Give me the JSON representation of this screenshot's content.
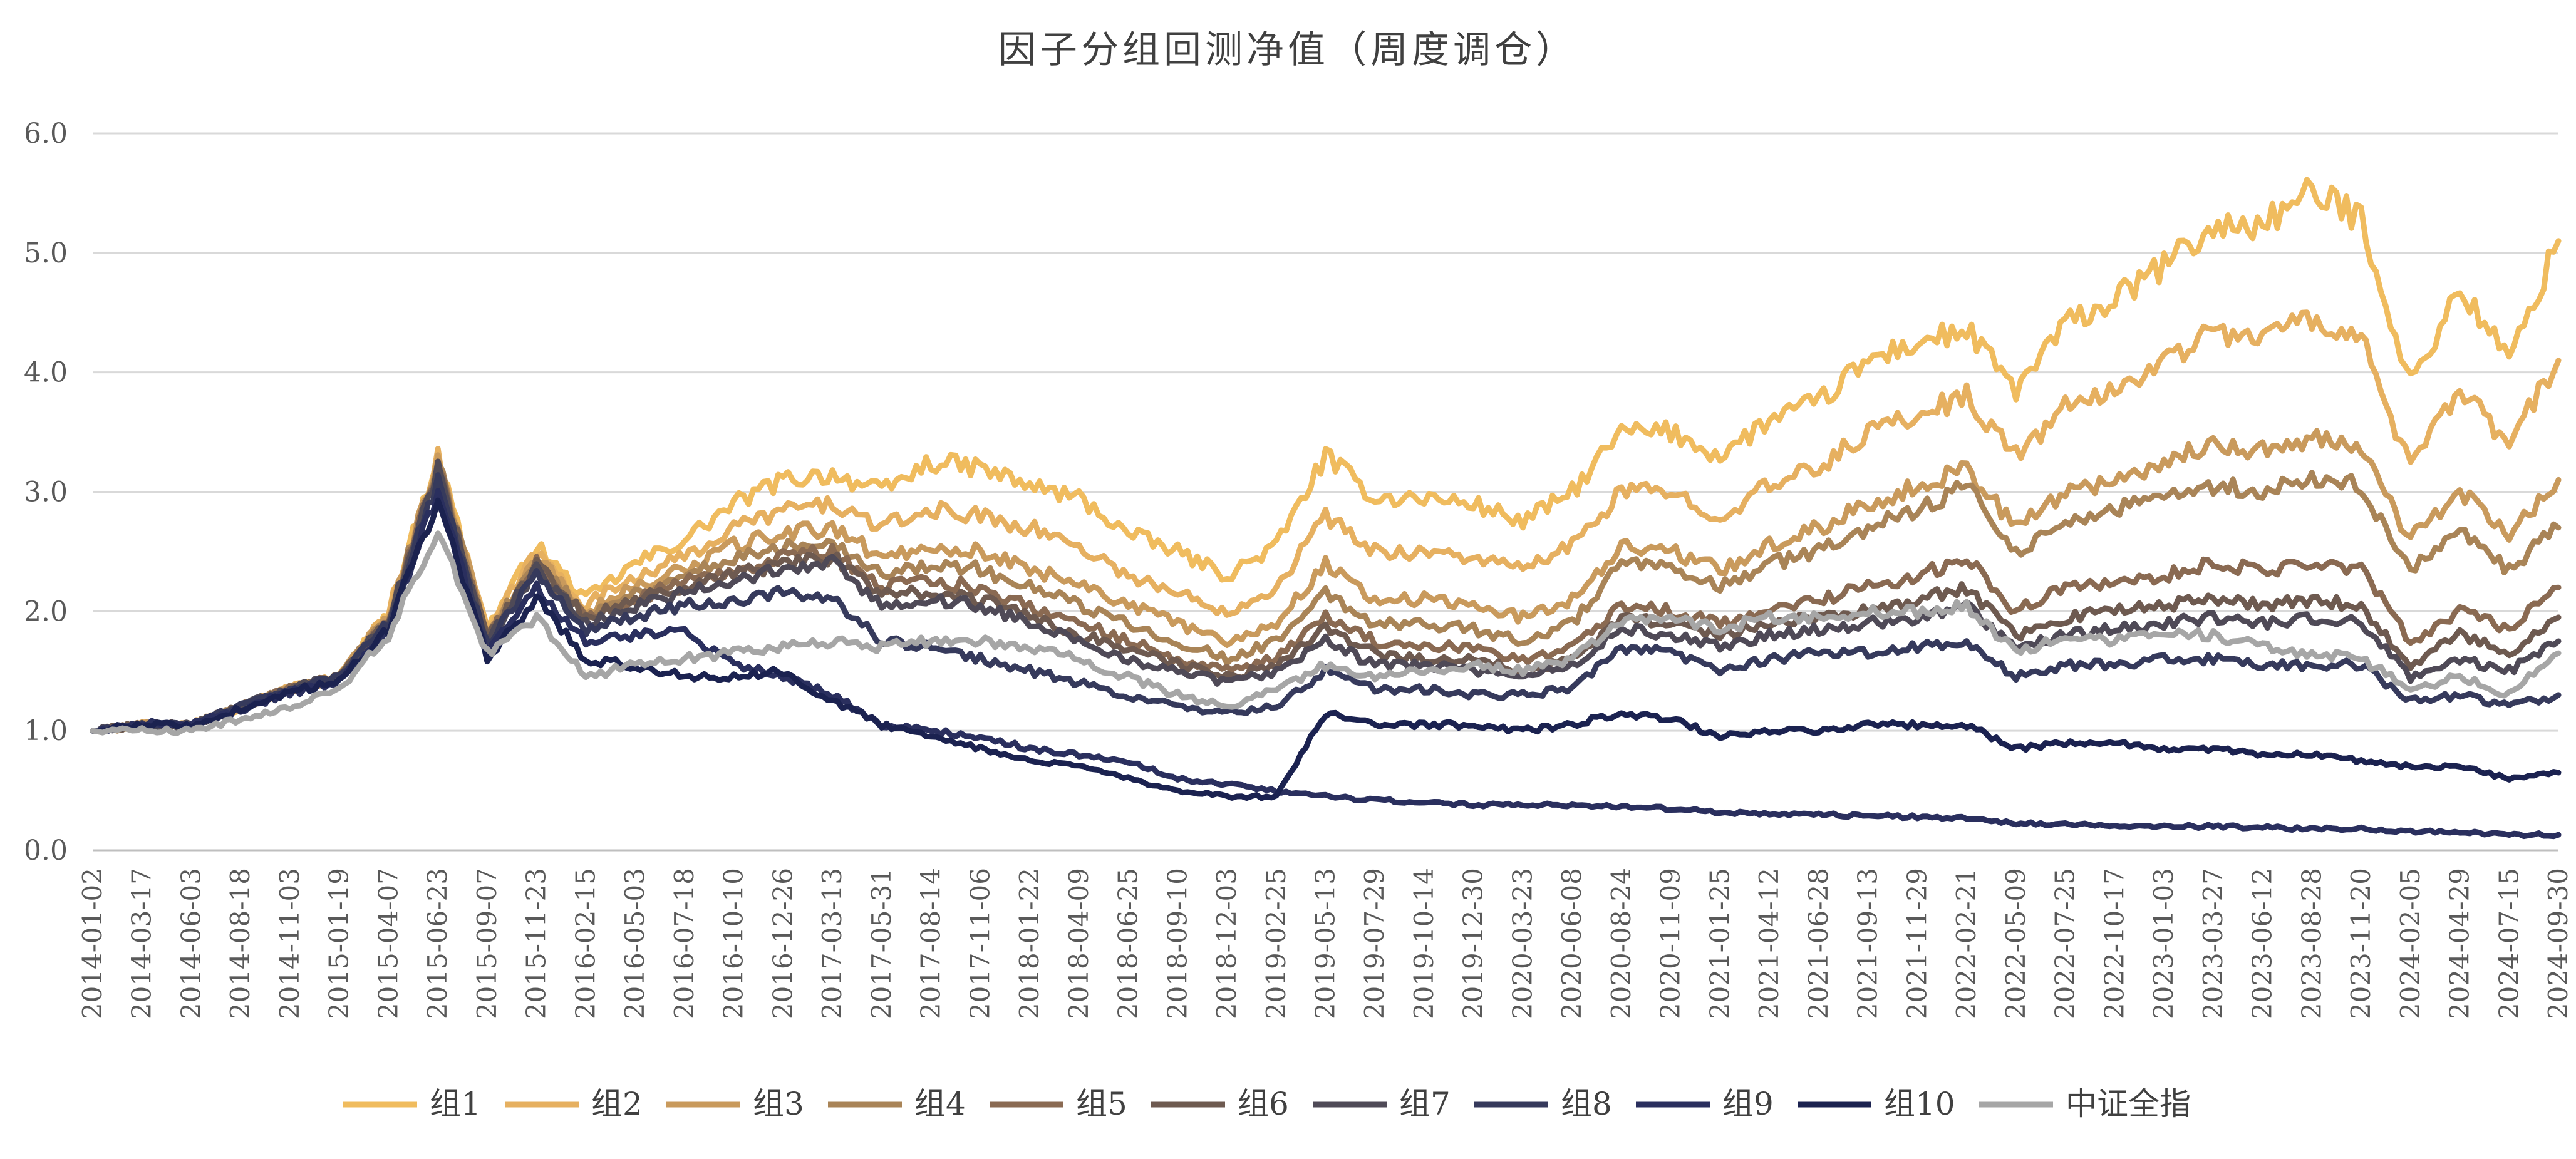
{
  "chart_data": {
    "type": "line",
    "title": "因子分组回测净值（周度调仓）",
    "xlabel": "",
    "ylabel": "",
    "ylim": [
      0.0,
      6.0
    ],
    "yticks": [
      "0.0",
      "1.0",
      "2.0",
      "3.0",
      "4.0",
      "5.0",
      "6.0"
    ],
    "grid": true,
    "legend_position": "bottom",
    "x": [
      "2014-01-02",
      "2014-03-17",
      "2014-06-03",
      "2014-08-18",
      "2014-11-03",
      "2015-01-19",
      "2015-04-07",
      "2015-06-23",
      "2015-09-07",
      "2015-11-23",
      "2016-02-15",
      "2016-05-03",
      "2016-07-18",
      "2016-10-10",
      "2016-12-26",
      "2017-03-13",
      "2017-05-31",
      "2017-08-14",
      "2017-11-06",
      "2018-01-22",
      "2018-04-09",
      "2018-06-25",
      "2018-09-10",
      "2018-12-03",
      "2019-02-25",
      "2019-05-13",
      "2019-07-29",
      "2019-10-14",
      "2019-12-30",
      "2020-03-23",
      "2020-06-08",
      "2020-08-24",
      "2020-11-09",
      "2021-01-25",
      "2021-04-12",
      "2021-06-28",
      "2021-09-13",
      "2021-11-29",
      "2022-02-21",
      "2022-05-09",
      "2022-07-25",
      "2022-10-17",
      "2023-01-03",
      "2023-03-27",
      "2023-06-12",
      "2023-08-28",
      "2023-11-20",
      "2024-02-05",
      "2024-04-29",
      "2024-07-15",
      "2024-09-30"
    ],
    "series": [
      {
        "name": "组1",
        "color": "#f0bc5e",
        "values": [
          1.0,
          1.05,
          1.05,
          1.2,
          1.35,
          1.45,
          2.0,
          3.3,
          1.85,
          2.55,
          2.1,
          2.4,
          2.6,
          2.9,
          3.1,
          3.15,
          3.0,
          3.25,
          3.2,
          3.05,
          2.95,
          2.65,
          2.5,
          2.3,
          2.55,
          3.3,
          2.95,
          2.95,
          2.9,
          2.75,
          3.0,
          3.5,
          3.5,
          3.3,
          3.6,
          3.75,
          4.1,
          4.25,
          4.35,
          3.85,
          4.4,
          4.6,
          4.9,
          5.2,
          5.25,
          5.5,
          5.3,
          3.9,
          4.7,
          4.1,
          5.1
        ]
      },
      {
        "name": "组2",
        "color": "#e6b060",
        "values": [
          1.0,
          1.05,
          1.05,
          1.2,
          1.35,
          1.45,
          2.0,
          3.28,
          1.83,
          2.5,
          2.05,
          2.3,
          2.45,
          2.7,
          2.85,
          2.9,
          2.7,
          2.85,
          2.8,
          2.7,
          2.55,
          2.3,
          2.15,
          2.0,
          2.2,
          2.8,
          2.5,
          2.5,
          2.45,
          2.35,
          2.55,
          3.0,
          3.0,
          2.8,
          3.05,
          3.2,
          3.5,
          3.65,
          3.8,
          3.3,
          3.7,
          3.85,
          4.1,
          4.35,
          4.3,
          4.45,
          4.3,
          3.2,
          3.85,
          3.4,
          4.1
        ]
      },
      {
        "name": "组3",
        "color": "#c99a5c",
        "values": [
          1.0,
          1.05,
          1.05,
          1.2,
          1.35,
          1.45,
          1.98,
          3.26,
          1.82,
          2.45,
          2.0,
          2.2,
          2.35,
          2.55,
          2.65,
          2.7,
          2.45,
          2.55,
          2.5,
          2.35,
          2.25,
          2.05,
          1.9,
          1.75,
          1.9,
          2.4,
          2.1,
          2.1,
          2.05,
          1.95,
          2.1,
          2.55,
          2.5,
          2.35,
          2.55,
          2.7,
          2.9,
          3.05,
          3.2,
          2.7,
          3.0,
          3.1,
          3.25,
          3.4,
          3.35,
          3.45,
          3.35,
          2.6,
          3.0,
          2.65,
          3.1
        ]
      },
      {
        "name": "组4",
        "color": "#a98457",
        "values": [
          1.0,
          1.05,
          1.05,
          1.2,
          1.35,
          1.45,
          1.96,
          3.24,
          1.8,
          2.42,
          1.98,
          2.15,
          2.3,
          2.45,
          2.55,
          2.6,
          2.3,
          2.4,
          2.35,
          2.2,
          2.05,
          1.9,
          1.75,
          1.6,
          1.75,
          2.15,
          1.9,
          1.9,
          1.85,
          1.75,
          1.9,
          2.4,
          2.35,
          2.2,
          2.4,
          2.5,
          2.7,
          2.85,
          3.05,
          2.5,
          2.75,
          2.85,
          2.95,
          3.05,
          3.0,
          3.1,
          3.05,
          2.35,
          2.65,
          2.35,
          2.7
        ]
      },
      {
        "name": "组5",
        "color": "#8a6a52",
        "values": [
          1.0,
          1.05,
          1.05,
          1.2,
          1.35,
          1.45,
          1.95,
          3.22,
          1.78,
          2.4,
          1.95,
          2.1,
          2.25,
          2.35,
          2.45,
          2.5,
          2.2,
          2.25,
          2.2,
          2.05,
          1.9,
          1.75,
          1.6,
          1.5,
          1.6,
          1.95,
          1.75,
          1.7,
          1.7,
          1.6,
          1.7,
          2.05,
          2.0,
          1.9,
          2.0,
          2.1,
          2.2,
          2.3,
          2.45,
          2.0,
          2.2,
          2.25,
          2.3,
          2.4,
          2.35,
          2.4,
          2.35,
          1.75,
          2.0,
          1.85,
          2.2
        ]
      },
      {
        "name": "组6",
        "color": "#6e5a50",
        "values": [
          1.0,
          1.05,
          1.05,
          1.2,
          1.35,
          1.45,
          1.94,
          3.2,
          1.77,
          2.38,
          1.95,
          2.1,
          2.2,
          2.3,
          2.4,
          2.45,
          2.15,
          2.15,
          2.1,
          1.95,
          1.8,
          1.7,
          1.55,
          1.45,
          1.55,
          1.85,
          1.65,
          1.6,
          1.6,
          1.5,
          1.6,
          1.95,
          1.9,
          1.8,
          1.9,
          1.95,
          2.0,
          2.1,
          2.2,
          1.8,
          1.95,
          2.0,
          2.05,
          2.1,
          2.05,
          2.1,
          2.05,
          1.55,
          1.8,
          1.65,
          1.95
        ]
      },
      {
        "name": "组7",
        "color": "#4f4a57",
        "values": [
          1.0,
          1.05,
          1.05,
          1.2,
          1.35,
          1.45,
          1.93,
          3.18,
          1.76,
          2.35,
          1.9,
          2.05,
          2.15,
          2.25,
          2.35,
          2.4,
          2.05,
          2.1,
          2.05,
          1.9,
          1.75,
          1.6,
          1.5,
          1.4,
          1.5,
          1.75,
          1.55,
          1.55,
          1.5,
          1.45,
          1.55,
          1.85,
          1.8,
          1.7,
          1.8,
          1.85,
          1.9,
          1.95,
          2.05,
          1.7,
          1.8,
          1.85,
          1.9,
          1.95,
          1.9,
          1.95,
          1.9,
          1.45,
          1.6,
          1.5,
          1.75
        ]
      },
      {
        "name": "组8",
        "color": "#363a5c",
        "values": [
          1.0,
          1.05,
          1.05,
          1.2,
          1.35,
          1.45,
          1.9,
          3.1,
          1.72,
          2.3,
          1.85,
          1.95,
          2.05,
          2.1,
          2.15,
          2.1,
          1.75,
          1.7,
          1.6,
          1.5,
          1.4,
          1.3,
          1.2,
          1.15,
          1.2,
          1.5,
          1.35,
          1.35,
          1.3,
          1.3,
          1.35,
          1.7,
          1.65,
          1.5,
          1.6,
          1.65,
          1.65,
          1.7,
          1.75,
          1.45,
          1.55,
          1.55,
          1.6,
          1.6,
          1.55,
          1.55,
          1.55,
          1.25,
          1.3,
          1.2,
          1.3
        ]
      },
      {
        "name": "组9",
        "color": "#2a2f5e",
        "values": [
          1.0,
          1.06,
          1.05,
          1.18,
          1.32,
          1.42,
          1.85,
          3.0,
          1.65,
          2.2,
          1.75,
          1.8,
          1.85,
          1.55,
          1.45,
          1.3,
          1.05,
          1.0,
          0.95,
          0.85,
          0.8,
          0.75,
          0.6,
          0.55,
          0.5,
          0.45,
          0.42,
          0.4,
          0.38,
          0.38,
          0.38,
          0.37,
          0.35,
          0.32,
          0.3,
          0.3,
          0.29,
          0.28,
          0.27,
          0.23,
          0.22,
          0.21,
          0.2,
          0.2,
          0.19,
          0.18,
          0.18,
          0.16,
          0.15,
          0.13,
          0.13
        ]
      },
      {
        "name": "组10",
        "color": "#1b2250",
        "values": [
          1.0,
          1.05,
          1.05,
          1.18,
          1.32,
          1.42,
          1.85,
          2.95,
          1.6,
          2.1,
          1.6,
          1.55,
          1.45,
          1.45,
          1.5,
          1.25,
          1.05,
          0.95,
          0.85,
          0.75,
          0.7,
          0.6,
          0.5,
          0.45,
          0.45,
          1.15,
          1.05,
          1.05,
          1.05,
          1.0,
          1.05,
          1.15,
          1.1,
          0.95,
          1.0,
          1.0,
          1.05,
          1.05,
          1.05,
          0.85,
          0.9,
          0.9,
          0.85,
          0.85,
          0.8,
          0.8,
          0.75,
          0.7,
          0.7,
          0.6,
          0.65
        ]
      },
      {
        "name": "中证全指",
        "color": "#a6a6a6",
        "values": [
          1.0,
          1.0,
          1.0,
          1.1,
          1.2,
          1.35,
          1.8,
          2.7,
          1.65,
          1.95,
          1.45,
          1.55,
          1.6,
          1.65,
          1.7,
          1.75,
          1.7,
          1.75,
          1.75,
          1.7,
          1.6,
          1.45,
          1.3,
          1.2,
          1.35,
          1.55,
          1.45,
          1.5,
          1.55,
          1.5,
          1.6,
          1.9,
          1.95,
          1.85,
          1.95,
          1.95,
          2.0,
          2.0,
          2.05,
          1.65,
          1.8,
          1.75,
          1.8,
          1.8,
          1.7,
          1.65,
          1.6,
          1.35,
          1.45,
          1.3,
          1.65
        ]
      }
    ]
  }
}
